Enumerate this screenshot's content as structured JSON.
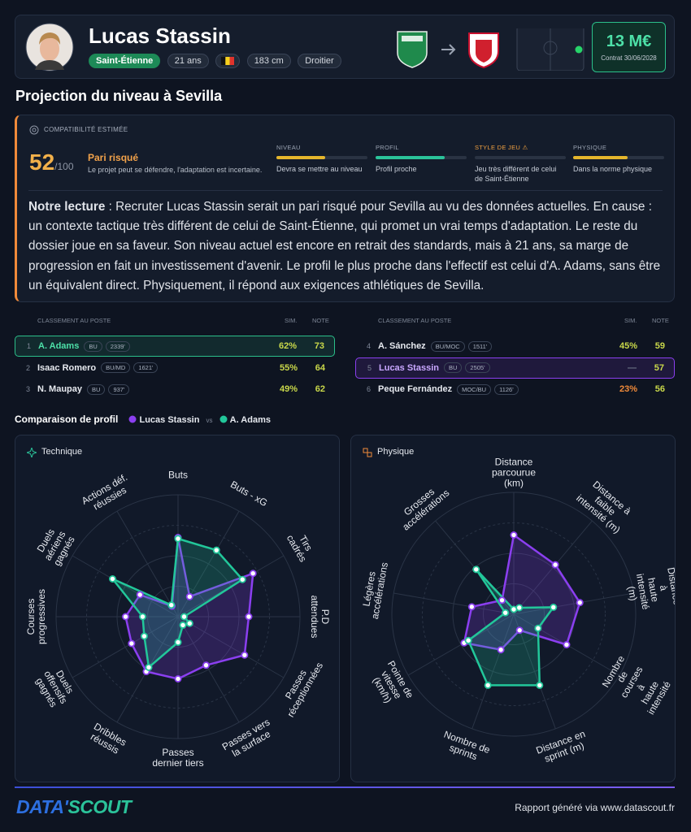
{
  "header": {
    "name": "Lucas Stassin",
    "club": "Saint-Étienne",
    "age": "21 ans",
    "height": "183 cm",
    "foot": "Droitier",
    "value": "13 M€",
    "contract": "Contrat 30/06/2028"
  },
  "section_title": "Projection du niveau à Sevilla",
  "compatibility": {
    "label": "COMPATIBILITÉ ESTIMÉE",
    "score": 52,
    "score_max": "/100",
    "verdict": "Pari risqué",
    "verdict_text": "Le projet peut se défendre, l'adaptation est incertaine.",
    "xlim": [
      0,
      100
    ],
    "criteria": [
      {
        "label": "NIVEAU",
        "level": 54,
        "color": "#e5b62c",
        "text": "Devra se mettre au niveau"
      },
      {
        "label": "PROFIL",
        "level": 76,
        "color": "#2bc39a",
        "text": "Profil proche"
      },
      {
        "label": "STYLE DE JEU ⚠",
        "level": 0,
        "color": "#f0a040",
        "text": "Jeu très différent de celui de Saint-Étienne"
      },
      {
        "label": "PHYSIQUE",
        "level": 60,
        "color": "#e5b62c",
        "text": "Dans la norme physique"
      }
    ],
    "reading_lead": "Notre lecture",
    "reading": ": Recruter Lucas Stassin serait un pari risqué pour Sevilla au vu des données actuelles. En cause : un contexte tactique très différent de celui de Saint-Étienne, qui promet un vrai temps d'adaptation. Le reste du dossier joue en sa faveur. Son niveau actuel est encore en retrait des standards, mais à 21 ans, sa marge de progression en fait un investissement d'avenir. Le profil le plus proche dans l'effectif est celui d'A. Adams, sans être un équivalent direct. Physiquement, il répond aux exigences athlétiques de Sevilla."
  },
  "ranking": {
    "title": "CLASSEMENT AU POSTE",
    "sim_header": "SIM.",
    "note_header": "NOTE",
    "rows": [
      {
        "rank": 1,
        "name": "A. Adams",
        "position": "BU",
        "minutes": "2339'",
        "sim": "62%",
        "note": 73,
        "sim_color": "#c9d84a",
        "highlight": "#2bbf8a"
      },
      {
        "rank": 2,
        "name": "Isaac Romero",
        "position": "BU/MD",
        "minutes": "1621'",
        "sim": "55%",
        "note": 64,
        "sim_color": "#c9d84a"
      },
      {
        "rank": 3,
        "name": "N. Maupay",
        "position": "BU",
        "minutes": "937'",
        "sim": "49%",
        "note": 62,
        "sim_color": "#c9d84a"
      },
      {
        "rank": 4,
        "name": "A. Sánchez",
        "position": "BU/MOC",
        "minutes": "1511'",
        "sim": "45%",
        "note": 59,
        "sim_color": "#c9d84a"
      },
      {
        "rank": 5,
        "name": "Lucas Stassin",
        "position": "BU",
        "minutes": "2505'",
        "sim": "—",
        "note": 57,
        "sim_color": "#6b7385",
        "highlight": "#8b3ff0"
      },
      {
        "rank": 6,
        "name": "Peque Fernández",
        "position": "MOC/BU",
        "minutes": "1126'",
        "sim": "23%",
        "note": 56,
        "sim_color": "#f08a3a"
      }
    ]
  },
  "comparison": {
    "title": "Comparaison de profil",
    "vs": "vs"
  },
  "chart_data": [
    {
      "type": "radar",
      "title": "Technique",
      "rlim": [
        0,
        100
      ],
      "rticks": [
        25,
        50,
        75,
        100
      ],
      "categories": [
        "Buts",
        "Buts - xG",
        "Tirs cadrés",
        "P.D\nattendues",
        "Passes\nréceptionnées",
        "Passes vers\nla surface",
        "Passes\ndernier tiers",
        "Dribbles\nréussis",
        "Duels\noffensifs\ngagnés",
        "Courses\nprogressives",
        "Duels\naériens\ngagnés",
        "Actions déf.\nréussies"
      ],
      "series": [
        {
          "name": "Lucas Stassin",
          "color": "#8b3ff0",
          "values": [
            65,
            19,
            71,
            58,
            63,
            46,
            51,
            52,
            44,
            43,
            36,
            10
          ]
        },
        {
          "name": "A. Adams",
          "color": "#22c79a",
          "values": [
            64,
            63,
            61,
            5,
            11,
            8,
            21,
            48,
            32,
            29,
            62,
            11
          ]
        }
      ]
    },
    {
      "type": "radar",
      "title": "Physique",
      "rlim": [
        0,
        100
      ],
      "rticks": [
        25,
        50,
        75,
        100
      ],
      "categories": [
        "Distance\nparcourue\n(km)",
        "Distance à\nfaible\nintensité (m)",
        "Distance à\nhaute\nintensité (m)",
        "Nombre de\ncourses à\nhaute intensité",
        "Distance en\nsprint (m)",
        "Nombre de\nsprints",
        "Pointe de\nvitesse\n(km/h)",
        "Légères\naccélérations",
        "Grosses\naccélérations"
      ],
      "series": [
        {
          "color": "#8b3ff0",
          "values": [
            65,
            53,
            55,
            50,
            14,
            31,
            47,
            35,
            15
          ]
        },
        {
          "color": "#22c79a",
          "values": [
            4,
            7,
            33,
            23,
            62,
            62,
            43,
            7,
            48
          ]
        }
      ]
    }
  ],
  "footer": {
    "logo": [
      "DATA'",
      "SCOUT"
    ],
    "credit": "Rapport généré via www.datascout.fr"
  }
}
